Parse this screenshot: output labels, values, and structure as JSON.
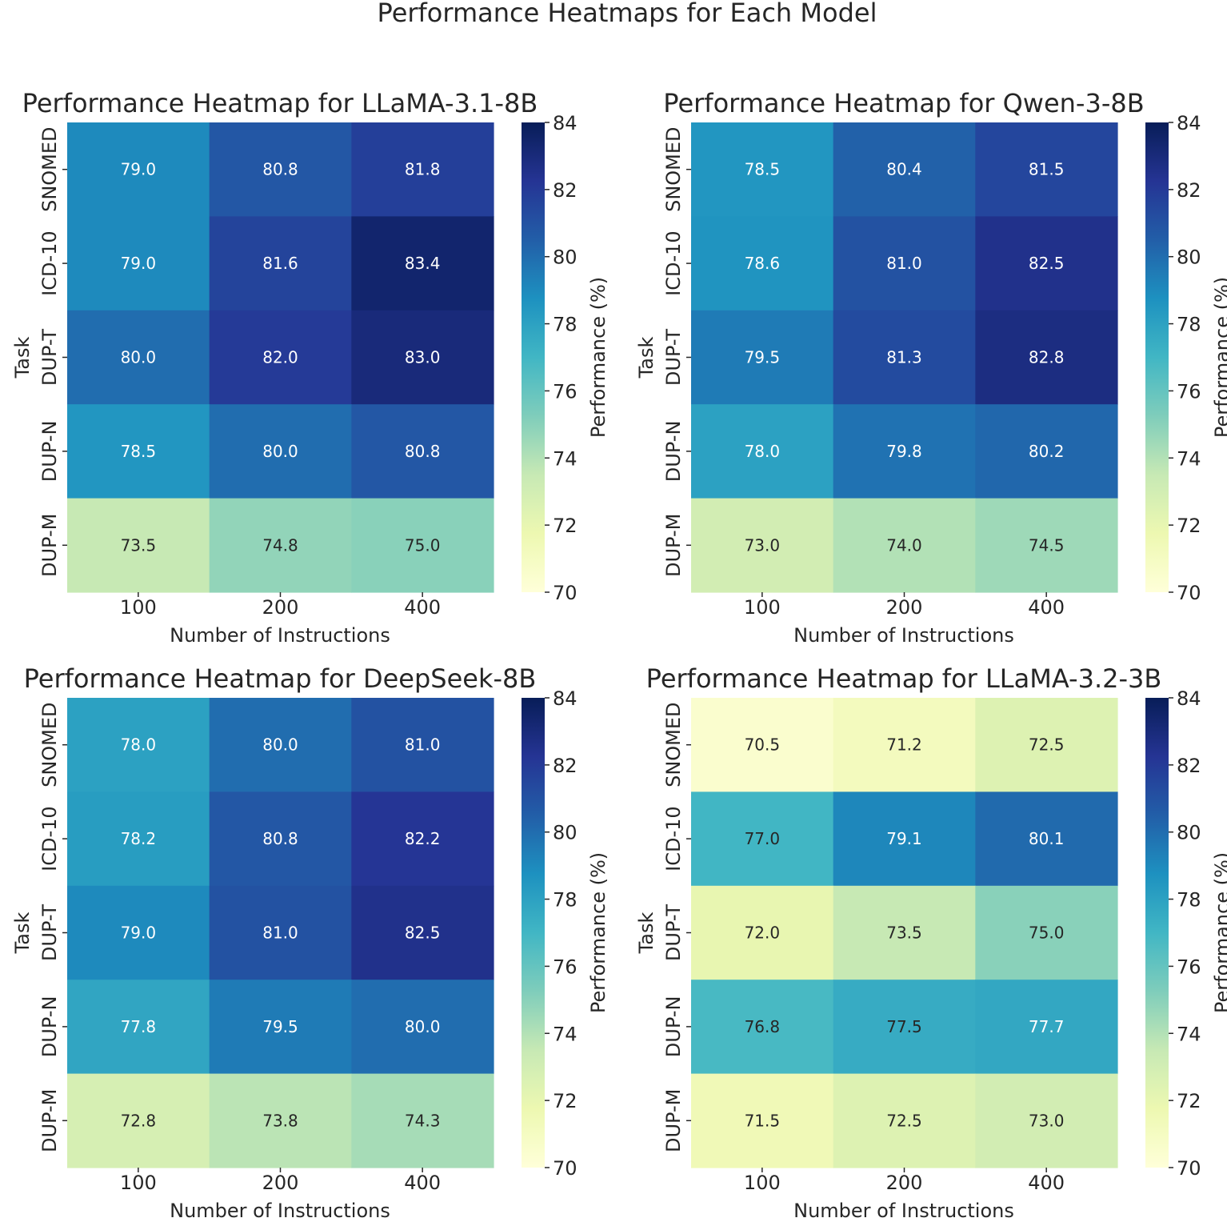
{
  "figure_title": "Performance Heatmaps for Each Model",
  "chart_data": [
    {
      "type": "heatmap",
      "title": "Performance Heatmap for LLaMA-3.1-8B",
      "xlabel": "Number of Instructions",
      "ylabel": "Task",
      "x": [
        "100",
        "200",
        "400"
      ],
      "y": [
        "SNOMED",
        "ICD-10",
        "DUP-T",
        "DUP-N",
        "DUP-M"
      ],
      "values": [
        [
          79.0,
          80.8,
          81.8
        ],
        [
          79.0,
          81.6,
          83.4
        ],
        [
          80.0,
          82.0,
          83.0
        ],
        [
          78.5,
          80.0,
          80.8
        ],
        [
          73.5,
          74.8,
          75.0
        ]
      ],
      "colorbar": {
        "label": "Performance (%)",
        "range": [
          70,
          84
        ],
        "ticks": [
          "70",
          "72",
          "74",
          "76",
          "78",
          "80",
          "82",
          "84"
        ]
      }
    },
    {
      "type": "heatmap",
      "title": "Performance Heatmap for Qwen-3-8B",
      "xlabel": "Number of Instructions",
      "ylabel": "Task",
      "x": [
        "100",
        "200",
        "400"
      ],
      "y": [
        "SNOMED",
        "ICD-10",
        "DUP-T",
        "DUP-N",
        "DUP-M"
      ],
      "values": [
        [
          78.5,
          80.4,
          81.5
        ],
        [
          78.6,
          81.0,
          82.5
        ],
        [
          79.5,
          81.3,
          82.8
        ],
        [
          78.0,
          79.8,
          80.2
        ],
        [
          73.0,
          74.0,
          74.5
        ]
      ],
      "colorbar": {
        "label": "Performance (%)",
        "range": [
          70,
          84
        ],
        "ticks": [
          "70",
          "72",
          "74",
          "76",
          "78",
          "80",
          "82",
          "84"
        ]
      }
    },
    {
      "type": "heatmap",
      "title": "Performance Heatmap for DeepSeek-8B",
      "xlabel": "Number of Instructions",
      "ylabel": "Task",
      "x": [
        "100",
        "200",
        "400"
      ],
      "y": [
        "SNOMED",
        "ICD-10",
        "DUP-T",
        "DUP-N",
        "DUP-M"
      ],
      "values": [
        [
          78.0,
          80.0,
          81.0
        ],
        [
          78.2,
          80.8,
          82.2
        ],
        [
          79.0,
          81.0,
          82.5
        ],
        [
          77.8,
          79.5,
          80.0
        ],
        [
          72.8,
          73.8,
          74.3
        ]
      ],
      "colorbar": {
        "label": "Performance (%)",
        "range": [
          70,
          84
        ],
        "ticks": [
          "70",
          "72",
          "74",
          "76",
          "78",
          "80",
          "82",
          "84"
        ]
      }
    },
    {
      "type": "heatmap",
      "title": "Performance Heatmap for LLaMA-3.2-3B",
      "xlabel": "Number of Instructions",
      "ylabel": "Task",
      "x": [
        "100",
        "200",
        "400"
      ],
      "y": [
        "SNOMED",
        "ICD-10",
        "DUP-T",
        "DUP-N",
        "DUP-M"
      ],
      "values": [
        [
          70.5,
          71.2,
          72.5
        ],
        [
          77.0,
          79.1,
          80.1
        ],
        [
          72.0,
          73.5,
          75.0
        ],
        [
          76.8,
          77.5,
          77.7
        ],
        [
          71.5,
          72.5,
          73.0
        ]
      ],
      "colorbar": {
        "label": "Performance (%)",
        "range": [
          70,
          84
        ],
        "ticks": [
          "70",
          "72",
          "74",
          "76",
          "78",
          "80",
          "82",
          "84"
        ]
      }
    }
  ]
}
